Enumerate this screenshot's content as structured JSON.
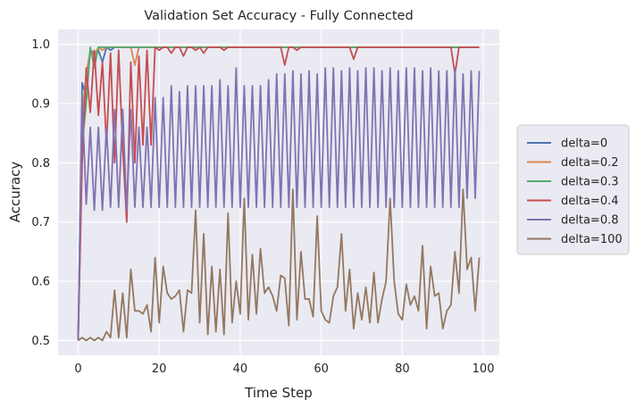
{
  "chart_data": {
    "type": "line",
    "title": "Validation Set Accuracy - Fully Connected",
    "xlabel": "Time Step",
    "ylabel": "Accuracy",
    "xlim": [
      -4.95,
      103.95
    ],
    "ylim": [
      0.475,
      1.025
    ],
    "xticks": [
      0,
      20,
      40,
      60,
      80,
      100
    ],
    "yticks": [
      0.5,
      0.6,
      0.7,
      0.8,
      0.9,
      1.0
    ],
    "ytick_labels": [
      "0.5",
      "0.6",
      "0.7",
      "0.8",
      "0.9",
      "1.0"
    ],
    "grid": true,
    "legend_position": "right, outside plot",
    "x": [
      0,
      1,
      2,
      3,
      4,
      5,
      6,
      7,
      8,
      9,
      10,
      11,
      12,
      13,
      14,
      15,
      16,
      17,
      18,
      19,
      20,
      21,
      22,
      23,
      24,
      25,
      26,
      27,
      28,
      29,
      30,
      31,
      32,
      33,
      34,
      35,
      36,
      37,
      38,
      39,
      40,
      41,
      42,
      43,
      44,
      45,
      46,
      47,
      48,
      49,
      50,
      51,
      52,
      53,
      54,
      55,
      56,
      57,
      58,
      59,
      60,
      61,
      62,
      63,
      64,
      65,
      66,
      67,
      68,
      69,
      70,
      71,
      72,
      73,
      74,
      75,
      76,
      77,
      78,
      79,
      80,
      81,
      82,
      83,
      84,
      85,
      86,
      87,
      88,
      89,
      90,
      91,
      92,
      93,
      94,
      95,
      96,
      97,
      98,
      99
    ],
    "series": [
      {
        "name": "delta=0",
        "color": "#4c72b0",
        "values": [
          0.5,
          0.935,
          0.91,
          0.99,
          0.985,
          0.99,
          0.97,
          0.995,
          0.99,
          0.995,
          0.995,
          0.995,
          0.995,
          0.995,
          0.995,
          0.995,
          0.995,
          0.995,
          0.995,
          0.995,
          0.995,
          0.995,
          0.995,
          0.995,
          0.995,
          0.995,
          0.995,
          0.995,
          0.995,
          0.995,
          0.995,
          0.995,
          0.995,
          0.995,
          0.995,
          0.995,
          0.995,
          0.995,
          0.995,
          0.995,
          0.995,
          0.995,
          0.995,
          0.995,
          0.995,
          0.995,
          0.995,
          0.995,
          0.995,
          0.995,
          0.995,
          0.995,
          0.995,
          0.995,
          0.995,
          0.995,
          0.995,
          0.995,
          0.995,
          0.995,
          0.995,
          0.995,
          0.995,
          0.995,
          0.995,
          0.995,
          0.995,
          0.995,
          0.995,
          0.995,
          0.995,
          0.995,
          0.995,
          0.995,
          0.995,
          0.995,
          0.995,
          0.995,
          0.995,
          0.995,
          0.995,
          0.995,
          0.995,
          0.995,
          0.995,
          0.995,
          0.995,
          0.995,
          0.995,
          0.995,
          0.995,
          0.995,
          0.995,
          0.995,
          0.995,
          0.995,
          0.995,
          0.995,
          0.995,
          0.995
        ]
      },
      {
        "name": "delta=0.2",
        "color": "#dd8452",
        "values": [
          0.5,
          0.88,
          0.95,
          0.99,
          0.98,
          0.995,
          0.99,
          0.995,
          0.995,
          0.995,
          0.995,
          0.995,
          0.995,
          0.995,
          0.965,
          0.995,
          0.995,
          0.995,
          0.995,
          0.995,
          0.995,
          0.995,
          0.995,
          0.995,
          0.995,
          0.995,
          0.995,
          0.995,
          0.995,
          0.995,
          0.995,
          0.995,
          0.995,
          0.995,
          0.995,
          0.995,
          0.995,
          0.995,
          0.995,
          0.995,
          0.995,
          0.995,
          0.995,
          0.995,
          0.995,
          0.995,
          0.995,
          0.995,
          0.995,
          0.995,
          0.995,
          0.995,
          0.995,
          0.995,
          0.995,
          0.995,
          0.995,
          0.995,
          0.995,
          0.995,
          0.995,
          0.995,
          0.995,
          0.995,
          0.995,
          0.995,
          0.995,
          0.995,
          0.995,
          0.995,
          0.995,
          0.995,
          0.995,
          0.995,
          0.995,
          0.995,
          0.995,
          0.995,
          0.995,
          0.995,
          0.995,
          0.995,
          0.995,
          0.995,
          0.995,
          0.995,
          0.995,
          0.995,
          0.995,
          0.995,
          0.995,
          0.995,
          0.995,
          0.995,
          0.995,
          0.995,
          0.995,
          0.995,
          0.995,
          0.995
        ]
      },
      {
        "name": "delta=0.3",
        "color": "#55a868",
        "values": [
          0.5,
          0.83,
          0.9,
          0.995,
          0.96,
          0.995,
          0.995,
          0.995,
          0.995,
          0.995,
          0.995,
          0.995,
          0.995,
          0.995,
          0.995,
          0.995,
          0.995,
          0.995,
          0.995,
          0.995,
          0.995,
          0.995,
          0.995,
          0.995,
          0.995,
          0.995,
          0.995,
          0.995,
          0.995,
          0.995,
          0.995,
          0.995,
          0.995,
          0.995,
          0.995,
          0.995,
          0.995,
          0.995,
          0.995,
          0.995,
          0.995,
          0.995,
          0.995,
          0.995,
          0.995,
          0.995,
          0.995,
          0.995,
          0.995,
          0.995,
          0.995,
          0.995,
          0.995,
          0.995,
          0.995,
          0.995,
          0.995,
          0.995,
          0.995,
          0.995,
          0.995,
          0.995,
          0.995,
          0.995,
          0.995,
          0.995,
          0.995,
          0.995,
          0.995,
          0.995,
          0.995,
          0.995,
          0.995,
          0.995,
          0.995,
          0.995,
          0.995,
          0.995,
          0.995,
          0.995,
          0.995,
          0.995,
          0.995,
          0.995,
          0.995,
          0.995,
          0.995,
          0.995,
          0.995,
          0.995,
          0.995,
          0.995,
          0.995,
          0.995,
          0.995,
          0.995,
          0.995,
          0.995,
          0.995,
          0.995
        ]
      },
      {
        "name": "delta=0.4",
        "color": "#c44e52",
        "values": [
          0.5,
          0.8,
          0.96,
          0.885,
          0.99,
          0.88,
          0.97,
          0.83,
          0.985,
          0.8,
          0.99,
          0.825,
          0.7,
          0.97,
          0.8,
          0.98,
          0.83,
          0.99,
          0.83,
          0.995,
          0.99,
          0.995,
          0.995,
          0.985,
          0.995,
          0.995,
          0.98,
          0.995,
          0.995,
          0.99,
          0.995,
          0.985,
          0.995,
          0.995,
          0.995,
          0.995,
          0.99,
          0.995,
          0.995,
          0.995,
          0.995,
          0.995,
          0.995,
          0.995,
          0.995,
          0.995,
          0.995,
          0.995,
          0.995,
          0.995,
          0.995,
          0.965,
          0.995,
          0.995,
          0.99,
          0.995,
          0.995,
          0.995,
          0.995,
          0.995,
          0.995,
          0.995,
          0.995,
          0.995,
          0.995,
          0.995,
          0.995,
          0.995,
          0.975,
          0.995,
          0.995,
          0.995,
          0.995,
          0.995,
          0.995,
          0.995,
          0.995,
          0.995,
          0.995,
          0.995,
          0.995,
          0.995,
          0.995,
          0.995,
          0.995,
          0.995,
          0.995,
          0.995,
          0.995,
          0.995,
          0.995,
          0.995,
          0.995,
          0.95,
          0.995,
          0.995,
          0.995,
          0.995,
          0.995,
          0.995
        ]
      },
      {
        "name": "delta=0.8",
        "color": "#8172b2",
        "values": [
          0.5,
          0.91,
          0.73,
          0.86,
          0.72,
          0.86,
          0.72,
          0.86,
          0.725,
          0.89,
          0.725,
          0.89,
          0.72,
          0.89,
          0.725,
          0.86,
          0.725,
          0.86,
          0.725,
          0.91,
          0.725,
          0.91,
          0.725,
          0.93,
          0.725,
          0.92,
          0.725,
          0.93,
          0.725,
          0.93,
          0.725,
          0.93,
          0.725,
          0.93,
          0.725,
          0.94,
          0.725,
          0.93,
          0.725,
          0.96,
          0.725,
          0.93,
          0.725,
          0.93,
          0.725,
          0.93,
          0.725,
          0.94,
          0.725,
          0.95,
          0.725,
          0.95,
          0.725,
          0.955,
          0.725,
          0.95,
          0.725,
          0.955,
          0.725,
          0.95,
          0.725,
          0.96,
          0.725,
          0.96,
          0.725,
          0.955,
          0.725,
          0.96,
          0.725,
          0.955,
          0.725,
          0.96,
          0.725,
          0.96,
          0.725,
          0.955,
          0.725,
          0.96,
          0.725,
          0.955,
          0.725,
          0.96,
          0.725,
          0.96,
          0.725,
          0.955,
          0.725,
          0.96,
          0.725,
          0.955,
          0.725,
          0.955,
          0.725,
          0.96,
          0.725,
          0.95,
          0.74,
          0.955,
          0.74,
          0.955
        ]
      },
      {
        "name": "delta=100",
        "color": "#937860",
        "values": [
          0.5,
          0.505,
          0.5,
          0.505,
          0.5,
          0.505,
          0.5,
          0.515,
          0.505,
          0.585,
          0.505,
          0.58,
          0.505,
          0.62,
          0.55,
          0.55,
          0.545,
          0.56,
          0.515,
          0.64,
          0.53,
          0.625,
          0.58,
          0.57,
          0.575,
          0.585,
          0.515,
          0.585,
          0.58,
          0.72,
          0.53,
          0.68,
          0.51,
          0.625,
          0.515,
          0.62,
          0.51,
          0.715,
          0.53,
          0.6,
          0.545,
          0.74,
          0.535,
          0.645,
          0.545,
          0.655,
          0.58,
          0.59,
          0.575,
          0.55,
          0.61,
          0.605,
          0.525,
          0.755,
          0.535,
          0.65,
          0.57,
          0.57,
          0.54,
          0.71,
          0.55,
          0.535,
          0.53,
          0.575,
          0.59,
          0.68,
          0.55,
          0.62,
          0.52,
          0.58,
          0.535,
          0.59,
          0.53,
          0.615,
          0.53,
          0.57,
          0.6,
          0.74,
          0.6,
          0.545,
          0.535,
          0.595,
          0.56,
          0.575,
          0.55,
          0.66,
          0.52,
          0.625,
          0.575,
          0.58,
          0.52,
          0.55,
          0.56,
          0.65,
          0.58,
          0.755,
          0.62,
          0.64,
          0.55,
          0.64
        ]
      }
    ]
  }
}
